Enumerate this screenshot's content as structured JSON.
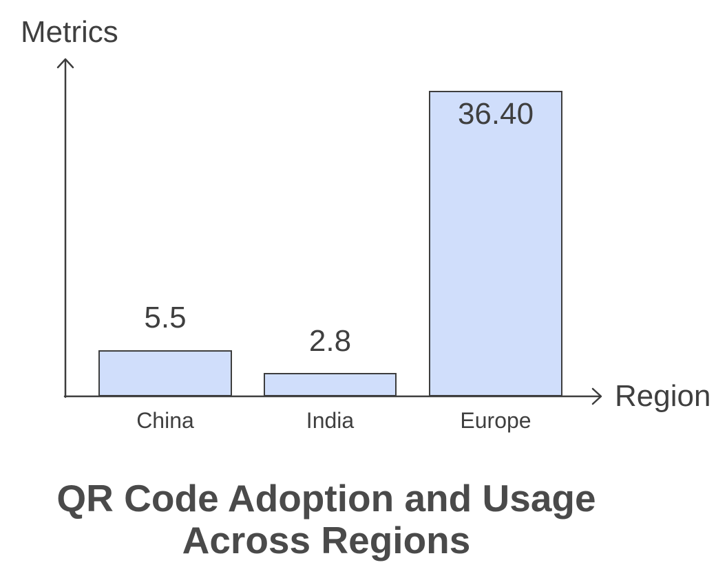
{
  "page": {
    "background_color": "#ffffff"
  },
  "chart_data": {
    "type": "bar",
    "title": "QR Code Adoption and Usage Across Regions",
    "title_lines": [
      "QR Code Adoption and Usage",
      "Across Regions"
    ],
    "xlabel": "Region",
    "ylabel": "Metrics",
    "categories": [
      "China",
      "India",
      "Europe"
    ],
    "values": [
      5.5,
      2.8,
      36.4
    ],
    "value_labels": [
      "5.5",
      "2.8",
      "36.40"
    ],
    "value_label_positions": [
      "above-bar",
      "above-bar",
      "inside-bar-top"
    ],
    "series": [
      {
        "name": "Metrics",
        "values": [
          5.5,
          2.8,
          36.4
        ]
      }
    ],
    "ylim": [
      0,
      40
    ],
    "grid": false,
    "legend_position": "none",
    "axes_style": "arrow-axes",
    "colors": {
      "bar_fill": "#d0defb",
      "bar_border": "#3d3d3d",
      "axis": "#3d3d3d",
      "label_text": "#3f3f3f",
      "title_text": "#4a4a4a"
    }
  }
}
